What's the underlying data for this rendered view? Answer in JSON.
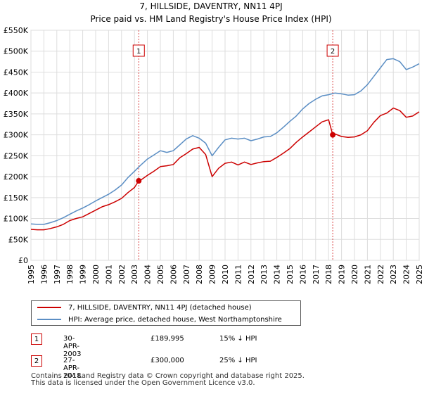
{
  "chart_data": {
    "type": "line",
    "title": "7, HILLSIDE, DAVENTRY, NN11 4PJ",
    "subtitle": "Price paid vs. HM Land Registry's House Price Index (HPI)",
    "xlim": [
      1995,
      2025
    ],
    "ylim": [
      0,
      550000
    ],
    "y_ticks": [
      0,
      50000,
      100000,
      150000,
      200000,
      250000,
      300000,
      350000,
      400000,
      450000,
      500000,
      550000
    ],
    "y_tick_labels": [
      "£0",
      "£50K",
      "£100K",
      "£150K",
      "£200K",
      "£250K",
      "£300K",
      "£350K",
      "£400K",
      "£450K",
      "£500K",
      "£550K"
    ],
    "x_ticks": [
      1995,
      1996,
      1997,
      1998,
      1999,
      2000,
      2001,
      2002,
      2003,
      2004,
      2005,
      2006,
      2007,
      2008,
      2009,
      2010,
      2011,
      2012,
      2013,
      2014,
      2015,
      2016,
      2017,
      2018,
      2019,
      2020,
      2021,
      2022,
      2023,
      2024,
      2025
    ],
    "x_tick_labels": [
      "1995",
      "1996",
      "1997",
      "1998",
      "1999",
      "2000",
      "2001",
      "2002",
      "2003",
      "2004",
      "2005",
      "2006",
      "2007",
      "2008",
      "2009",
      "2010",
      "2011",
      "2012",
      "2013",
      "2014",
      "2015",
      "2016",
      "2017",
      "2018",
      "2019",
      "2020",
      "2021",
      "2022",
      "2023",
      "2024",
      "2025"
    ],
    "series": [
      {
        "name": "7, HILLSIDE, DAVENTRY, NN11 4PJ (detached house)",
        "color": "#cc0000",
        "x": [
          1995.0,
          1995.5,
          1996.0,
          1996.5,
          1997.0,
          1997.5,
          1998.0,
          1998.5,
          1999.0,
          1999.5,
          2000.0,
          2000.5,
          2001.0,
          2001.5,
          2002.0,
          2002.5,
          2003.0,
          2003.33,
          2003.5,
          2004.0,
          2004.5,
          2005.0,
          2005.5,
          2006.0,
          2006.5,
          2007.0,
          2007.5,
          2008.0,
          2008.5,
          2009.0,
          2009.5,
          2010.0,
          2010.5,
          2011.0,
          2011.5,
          2012.0,
          2012.5,
          2013.0,
          2013.5,
          2014.0,
          2014.5,
          2015.0,
          2015.5,
          2016.0,
          2016.5,
          2017.0,
          2017.5,
          2018.0,
          2018.32,
          2018.5,
          2019.0,
          2019.5,
          2020.0,
          2020.5,
          2021.0,
          2021.5,
          2022.0,
          2022.5,
          2023.0,
          2023.5,
          2024.0,
          2024.5,
          2025.0
        ],
        "y": [
          74000,
          73000,
          73000,
          76000,
          80000,
          86000,
          95000,
          100000,
          104000,
          112000,
          120000,
          128000,
          133000,
          140000,
          148000,
          162000,
          174000,
          189995,
          192000,
          203000,
          213000,
          224000,
          226000,
          229000,
          245000,
          255000,
          266000,
          270000,
          253000,
          200000,
          220000,
          232000,
          235000,
          228000,
          235000,
          229000,
          233000,
          236000,
          237000,
          246000,
          256000,
          267000,
          282000,
          295000,
          307000,
          319000,
          331000,
          336000,
          300000,
          302000,
          296000,
          294000,
          295000,
          300000,
          310000,
          330000,
          346000,
          352000,
          364000,
          358000,
          342000,
          345000,
          355000
        ]
      },
      {
        "name": "HPI: Average price, detached house, West Northamptonshire",
        "color": "#5b8ec4",
        "x": [
          1995.0,
          1995.5,
          1996.0,
          1996.5,
          1997.0,
          1997.5,
          1998.0,
          1998.5,
          1999.0,
          1999.5,
          2000.0,
          2000.5,
          2001.0,
          2001.5,
          2002.0,
          2002.5,
          2003.0,
          2003.5,
          2004.0,
          2004.5,
          2005.0,
          2005.5,
          2006.0,
          2006.5,
          2007.0,
          2007.5,
          2008.0,
          2008.5,
          2009.0,
          2009.5,
          2010.0,
          2010.5,
          2011.0,
          2011.5,
          2012.0,
          2012.5,
          2013.0,
          2013.5,
          2014.0,
          2014.5,
          2015.0,
          2015.5,
          2016.0,
          2016.5,
          2017.0,
          2017.5,
          2018.0,
          2018.5,
          2019.0,
          2019.5,
          2020.0,
          2020.5,
          2021.0,
          2021.5,
          2022.0,
          2022.5,
          2023.0,
          2023.5,
          2024.0,
          2024.5,
          2025.0
        ],
        "y": [
          87000,
          86000,
          86000,
          90000,
          95000,
          102000,
          110000,
          118000,
          125000,
          133000,
          142000,
          150000,
          158000,
          168000,
          180000,
          198000,
          213000,
          228000,
          242000,
          252000,
          262000,
          258000,
          262000,
          276000,
          290000,
          298000,
          292000,
          280000,
          250000,
          270000,
          288000,
          292000,
          290000,
          292000,
          286000,
          290000,
          295000,
          296000,
          305000,
          318000,
          332000,
          345000,
          362000,
          375000,
          385000,
          393000,
          396000,
          400000,
          398000,
          395000,
          396000,
          405000,
          420000,
          440000,
          460000,
          480000,
          482000,
          475000,
          456000,
          462000,
          470000
        ]
      }
    ],
    "markers": [
      {
        "label": "1",
        "x": 2003.33,
        "y": 189995
      },
      {
        "label": "2",
        "x": 2018.32,
        "y": 300000
      }
    ]
  },
  "legend": {
    "property_label": "7, HILLSIDE, DAVENTRY, NN11 4PJ (detached house)",
    "hpi_label": "HPI: Average price, detached house, West Northamptonshire"
  },
  "sales": [
    {
      "num": "1",
      "date": "30-APR-2003",
      "price": "£189,995",
      "hpi": "15% ↓ HPI"
    },
    {
      "num": "2",
      "date": "27-APR-2018",
      "price": "£300,000",
      "hpi": "25% ↓ HPI"
    }
  ],
  "footer": {
    "line1": "Contains HM Land Registry data © Crown copyright and database right 2025.",
    "line2": "This data is licensed under the Open Government Licence v3.0."
  }
}
